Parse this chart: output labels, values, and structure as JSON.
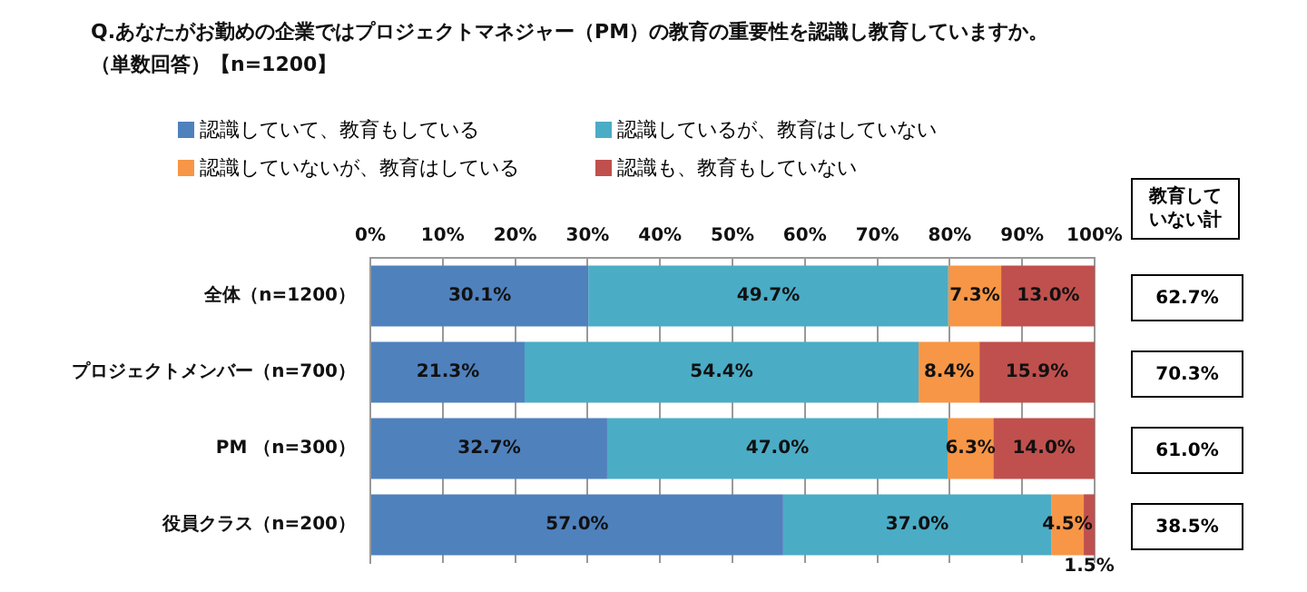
{
  "chart_data": {
    "type": "bar",
    "orientation": "horizontal",
    "stacked": true,
    "title": "Q.あなたがお勤めの企業ではプロジェクトマネジャー（PM）の教育の重要性を認識し教育していますか。",
    "subtitle": "（単数回答）【n=1200】",
    "categories": [
      "全体（n=1200）",
      "プロジェクトメンバー（n=700）",
      "PM （n=300）",
      "役員クラス（n=200）"
    ],
    "series": [
      {
        "name": "認識していて、教育もしている",
        "color": "#4f81bd",
        "values": [
          30.1,
          21.3,
          32.7,
          57.0
        ],
        "value_labels": [
          "30.1%",
          "21.3%",
          "32.7%",
          "57.0%"
        ]
      },
      {
        "name": "認識しているが、教育はしていない",
        "color": "#4bacc6",
        "values": [
          49.7,
          54.4,
          47.0,
          37.0
        ],
        "value_labels": [
          "49.7%",
          "54.4%",
          "47.0%",
          "37.0%"
        ]
      },
      {
        "name": "認識していないが、教育はしている",
        "color": "#f79646",
        "values": [
          7.3,
          8.4,
          6.3,
          4.5
        ],
        "value_labels": [
          "7.3%",
          "8.4%",
          "6.3%",
          "4.5%"
        ]
      },
      {
        "name": "認識も、教育もしていない",
        "color": "#c0504d",
        "values": [
          13.0,
          15.9,
          14.0,
          1.5
        ],
        "value_labels": [
          "13.0%",
          "15.9%",
          "14.0%",
          "1.5%"
        ]
      }
    ],
    "xlim": [
      0,
      100
    ],
    "xticks": [
      {
        "value": 0,
        "label": "0%"
      },
      {
        "value": 10,
        "label": "10%"
      },
      {
        "value": 20,
        "label": "20%"
      },
      {
        "value": 30,
        "label": "30%"
      },
      {
        "value": 40,
        "label": "40%"
      },
      {
        "value": 50,
        "label": "50%"
      },
      {
        "value": 60,
        "label": "60%"
      },
      {
        "value": 70,
        "label": "70%"
      },
      {
        "value": 80,
        "label": "80%"
      },
      {
        "value": 90,
        "label": "90%"
      },
      {
        "value": 100,
        "label": "100%"
      }
    ],
    "grid": "x",
    "legend": "top",
    "annotations": [
      "教育していない計",
      "62.7%",
      "70.3%",
      "61.0%",
      "38.5%"
    ]
  }
}
